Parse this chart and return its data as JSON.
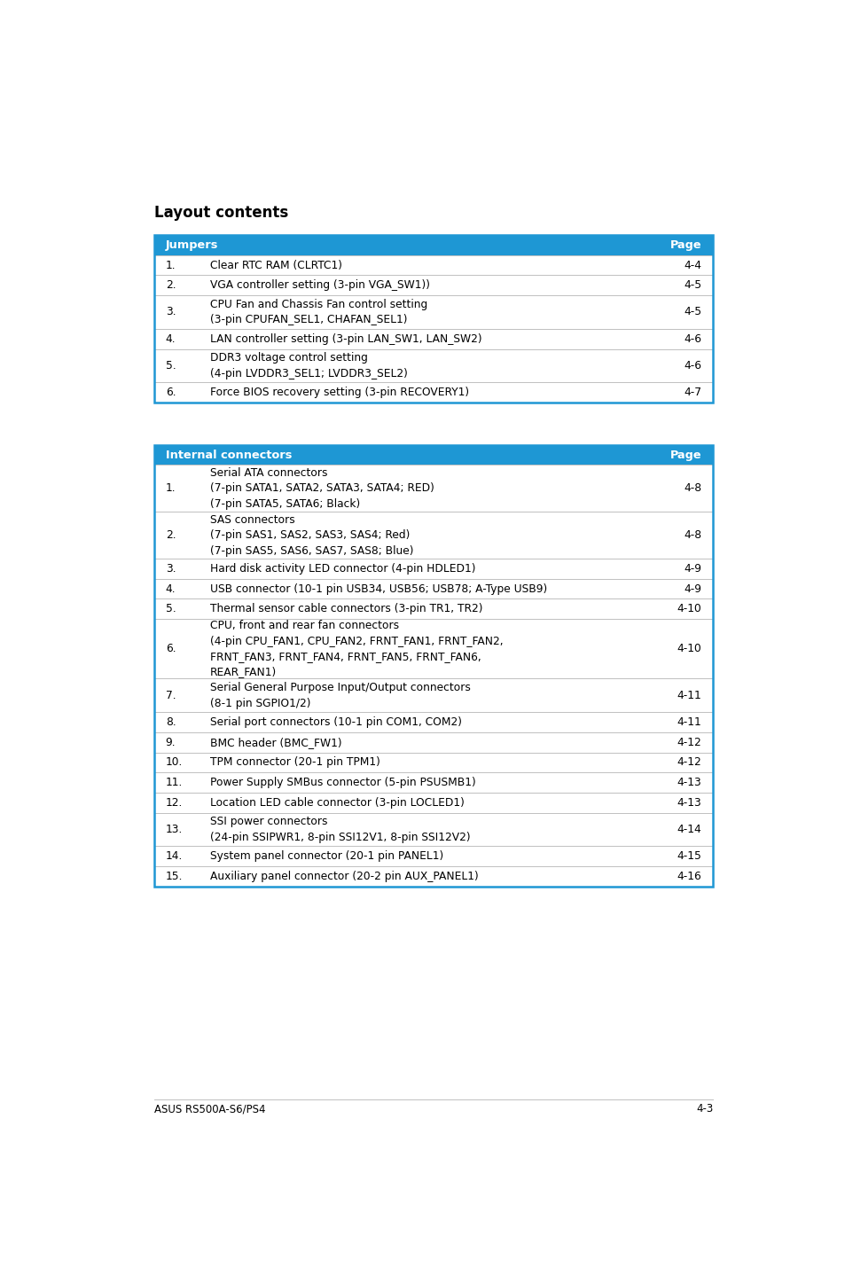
{
  "page_title": "Layout contents",
  "header_bg": "#1e97d4",
  "header_text_color": "#ffffff",
  "row_text_color": "#000000",
  "border_color": "#1e97d4",
  "divider_color": "#c0c0c0",
  "bg_color": "#ffffff",
  "footer_left": "ASUS RS500A-S6/PS4",
  "footer_right": "4-3",
  "table1": {
    "header_col1": "Jumpers",
    "header_col2": "Page",
    "rows": [
      {
        "num": "1.",
        "desc": "Clear RTC RAM (CLRTC1)",
        "page": "4-4",
        "lines": 1
      },
      {
        "num": "2.",
        "desc": "VGA controller setting (3-pin VGA_SW1))",
        "page": "4-5",
        "lines": 1
      },
      {
        "num": "3.",
        "desc": "CPU Fan and Chassis Fan control setting\n(3-pin CPUFAN_SEL1, CHAFAN_SEL1)",
        "page": "4-5",
        "lines": 2
      },
      {
        "num": "4.",
        "desc": "LAN controller setting (3-pin LAN_SW1, LAN_SW2)",
        "page": "4-6",
        "lines": 1
      },
      {
        "num": "5.",
        "desc": "DDR3 voltage control setting\n(4-pin LVDDR3_SEL1; LVDDR3_SEL2)",
        "page": "4-6",
        "lines": 2
      },
      {
        "num": "6.",
        "desc": "Force BIOS recovery setting (3-pin RECOVERY1)",
        "page": "4-7",
        "lines": 1
      }
    ]
  },
  "table2": {
    "header_col1": "Internal connectors",
    "header_col2": "Page",
    "rows": [
      {
        "num": "1.",
        "desc": "Serial ATA connectors\n(7-pin SATA1, SATA2, SATA3, SATA4; RED)\n(7-pin SATA5, SATA6; Black)",
        "page": "4-8",
        "lines": 3
      },
      {
        "num": "2.",
        "desc": "SAS connectors\n(7-pin SAS1, SAS2, SAS3, SAS4; Red)\n(7-pin SAS5, SAS6, SAS7, SAS8; Blue)",
        "page": "4-8",
        "lines": 3
      },
      {
        "num": "3.",
        "desc": "Hard disk activity LED connector (4-pin HDLED1)",
        "page": "4-9",
        "lines": 1
      },
      {
        "num": "4.",
        "desc": "USB connector (10-1 pin USB34, USB56; USB78; A-Type USB9)",
        "page": "4-9",
        "lines": 1
      },
      {
        "num": "5.",
        "desc": "Thermal sensor cable connectors (3-pin TR1, TR2)",
        "page": "4-10",
        "lines": 1
      },
      {
        "num": "6.",
        "desc": "CPU, front and rear fan connectors\n(4-pin CPU_FAN1, CPU_FAN2, FRNT_FAN1, FRNT_FAN2,\nFRNT_FAN3, FRNT_FAN4, FRNT_FAN5, FRNT_FAN6,\nREAR_FAN1)",
        "page": "4-10",
        "lines": 4
      },
      {
        "num": "7.",
        "desc": "Serial General Purpose Input/Output connectors\n(8-1 pin SGPIO1/2)",
        "page": "4-11",
        "lines": 2
      },
      {
        "num": "8.",
        "desc": "Serial port connectors (10-1 pin COM1, COM2)",
        "page": "4-11",
        "lines": 1
      },
      {
        "num": "9.",
        "desc": "BMC header (BMC_FW1)",
        "page": "4-12",
        "lines": 1
      },
      {
        "num": "10.",
        "desc": "TPM connector (20-1 pin TPM1)",
        "page": "4-12",
        "lines": 1
      },
      {
        "num": "11.",
        "desc": "Power Supply SMBus connector (5-pin PSUSMB1)",
        "page": "4-13",
        "lines": 1
      },
      {
        "num": "12.",
        "desc": "Location LED cable connector (3-pin LOCLED1)",
        "page": "4-13",
        "lines": 1
      },
      {
        "num": "13.",
        "desc": "SSI power connectors\n(24-pin SSIPWR1, 8-pin SSI12V1, 8-pin SSI12V2)",
        "page": "4-14",
        "lines": 2
      },
      {
        "num": "14.",
        "desc": "System panel connector (20-1 pin PANEL1)",
        "page": "4-15",
        "lines": 1
      },
      {
        "num": "15.",
        "desc": "Auxiliary panel connector (20-2 pin AUX_PANEL1)",
        "page": "4-16",
        "lines": 1
      }
    ]
  }
}
